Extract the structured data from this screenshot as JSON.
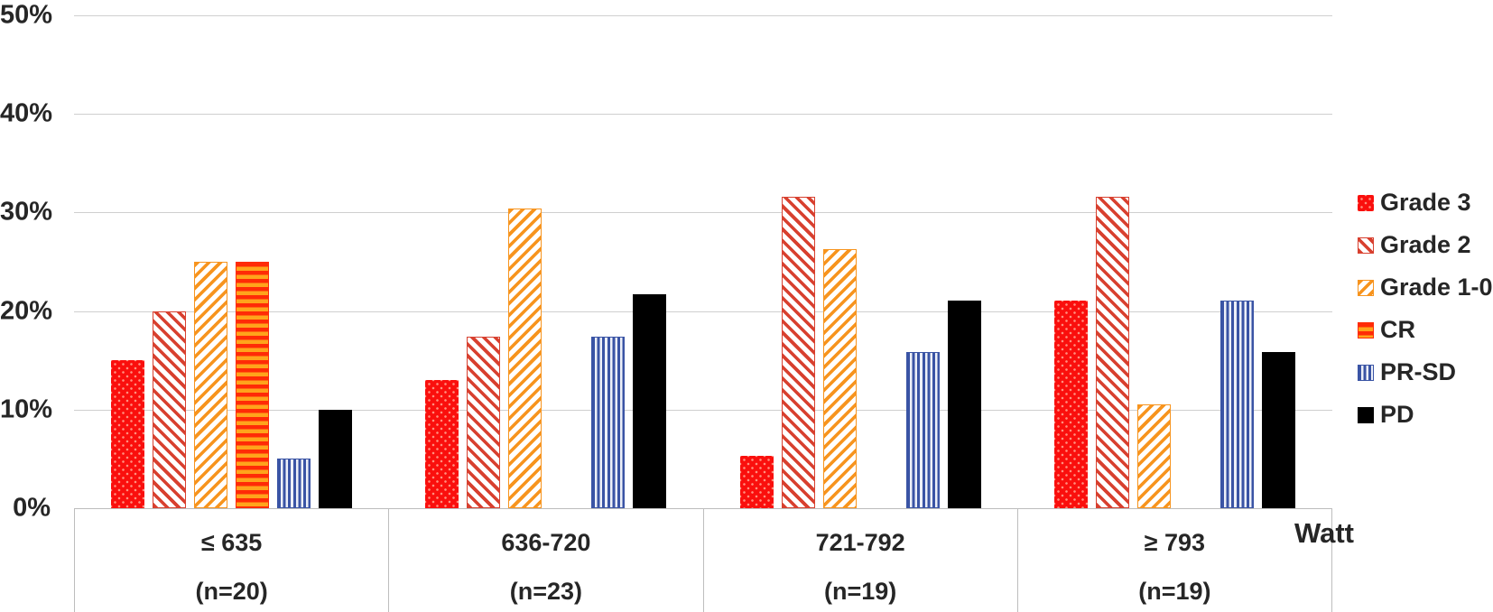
{
  "chart_data": {
    "type": "bar",
    "title": "",
    "xlabel": "Watt",
    "ylabel": "",
    "ylim": [
      0,
      50
    ],
    "y_ticks": [
      {
        "value": 0,
        "label": "0%"
      },
      {
        "value": 10,
        "label": "10%"
      },
      {
        "value": 20,
        "label": "20%"
      },
      {
        "value": 30,
        "label": "30%"
      },
      {
        "value": 40,
        "label": "40%"
      },
      {
        "value": 50,
        "label": "50%"
      }
    ],
    "grid": true,
    "legend_position": "right",
    "categories": [
      {
        "label": "≤ 635",
        "n_label": "(n=20)"
      },
      {
        "label": "636-720",
        "n_label": "(n=23)"
      },
      {
        "label": "721-792",
        "n_label": "(n=19)"
      },
      {
        "label": "≥ 793",
        "n_label": "(n=19)"
      }
    ],
    "series": [
      {
        "name": "Grade 3",
        "pattern": "dots",
        "color": "#FA0F0D",
        "values": [
          15,
          13,
          5.3,
          21.1
        ]
      },
      {
        "name": "Grade 2",
        "pattern": "diag-down",
        "color": "#D8402F",
        "values": [
          20,
          17.4,
          31.6,
          31.6
        ]
      },
      {
        "name": "Grade 1-0",
        "pattern": "diag-up",
        "color": "#F7941E",
        "values": [
          25,
          30.4,
          26.3,
          10.5
        ]
      },
      {
        "name": "CR",
        "pattern": "horiz",
        "color": "#FF2B07",
        "color2": "#FFA41B",
        "values": [
          25,
          0,
          0,
          0
        ]
      },
      {
        "name": "PR-SD",
        "pattern": "vert",
        "color": "#3A54A5",
        "values": [
          5,
          17.4,
          15.8,
          21.1
        ]
      },
      {
        "name": "PD",
        "pattern": "solid",
        "color": "#000000",
        "values": [
          10,
          21.7,
          21.1,
          15.8
        ]
      }
    ],
    "gridline_color": "#CFCFCF",
    "axis_box_color": "#BDBDBD"
  }
}
